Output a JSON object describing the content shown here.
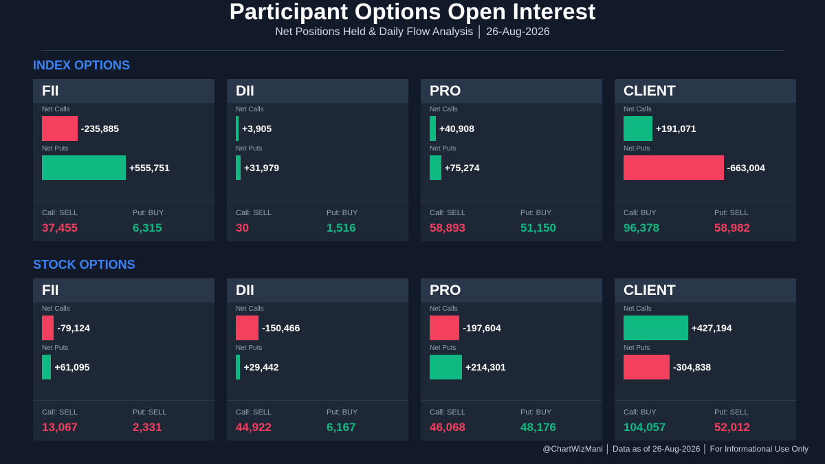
{
  "header": {
    "title": "Participant Options Open Interest",
    "subtitle": "Net Positions Held & Daily Flow Analysis  │  26-Aug-2026"
  },
  "colors": {
    "positive": "#10b981",
    "negative": "#f43f5e",
    "accent": "#3b82f6"
  },
  "sections": [
    {
      "title": "INDEX OPTIONS"
    },
    {
      "title": "STOCK OPTIONS"
    }
  ],
  "footer": "@ChartWizMani │ Data as of 26-Aug-2026 │ For Informational Use Only",
  "chart_data": {
    "type": "bar",
    "groups": [
      {
        "section": "INDEX OPTIONS",
        "panels": [
          {
            "name": "FII",
            "calls_label": "Net Calls",
            "puts_label": "Net Puts",
            "net_calls": -235885,
            "net_calls_text": "-235,885",
            "net_puts": 555751,
            "net_puts_text": "+555,751",
            "call_label": "Call: SELL",
            "call_value": "37,455",
            "call_color": "#f43f5e",
            "put_label": "Put: BUY",
            "put_value": "6,315",
            "put_color": "#10b981"
          },
          {
            "name": "DII",
            "calls_label": "Net Calls",
            "puts_label": "Net Puts",
            "net_calls": 3905,
            "net_calls_text": "+3,905",
            "net_puts": 31979,
            "net_puts_text": "+31,979",
            "call_label": "Call: SELL",
            "call_value": "30",
            "call_color": "#f43f5e",
            "put_label": "Put: BUY",
            "put_value": "1,516",
            "put_color": "#10b981"
          },
          {
            "name": "PRO",
            "calls_label": "Net Calls",
            "puts_label": "Net Puts",
            "net_calls": 40908,
            "net_calls_text": "+40,908",
            "net_puts": 75274,
            "net_puts_text": "+75,274",
            "call_label": "Call: SELL",
            "call_value": "58,893",
            "call_color": "#f43f5e",
            "put_label": "Put: BUY",
            "put_value": "51,150",
            "put_color": "#10b981"
          },
          {
            "name": "CLIENT",
            "calls_label": "Net Calls",
            "puts_label": "Net Puts",
            "net_calls": 191071,
            "net_calls_text": "+191,071",
            "net_puts": -663004,
            "net_puts_text": "-663,004",
            "call_label": "Call: BUY",
            "call_value": "96,378",
            "call_color": "#10b981",
            "put_label": "Put: SELL",
            "put_value": "58,982",
            "put_color": "#f43f5e"
          }
        ]
      },
      {
        "section": "STOCK OPTIONS",
        "panels": [
          {
            "name": "FII",
            "calls_label": "Net Calls",
            "puts_label": "Net Puts",
            "net_calls": -79124,
            "net_calls_text": "-79,124",
            "net_puts": 61095,
            "net_puts_text": "+61,095",
            "call_label": "Call: SELL",
            "call_value": "13,067",
            "call_color": "#f43f5e",
            "put_label": "Put: SELL",
            "put_value": "2,331",
            "put_color": "#f43f5e"
          },
          {
            "name": "DII",
            "calls_label": "Net Calls",
            "puts_label": "Net Puts",
            "net_calls": -150466,
            "net_calls_text": "-150,466",
            "net_puts": 29442,
            "net_puts_text": "+29,442",
            "call_label": "Call: SELL",
            "call_value": "44,922",
            "call_color": "#f43f5e",
            "put_label": "Put: BUY",
            "put_value": "6,167",
            "put_color": "#10b981"
          },
          {
            "name": "PRO",
            "calls_label": "Net Calls",
            "puts_label": "Net Puts",
            "net_calls": -197604,
            "net_calls_text": "-197,604",
            "net_puts": 214301,
            "net_puts_text": "+214,301",
            "call_label": "Call: SELL",
            "call_value": "46,068",
            "call_color": "#f43f5e",
            "put_label": "Put: BUY",
            "put_value": "48,176",
            "put_color": "#10b981"
          },
          {
            "name": "CLIENT",
            "calls_label": "Net Calls",
            "puts_label": "Net Puts",
            "net_calls": 427194,
            "net_calls_text": "+427,194",
            "net_puts": -304838,
            "net_puts_text": "-304,838",
            "call_label": "Call: BUY",
            "call_value": "104,057",
            "call_color": "#10b981",
            "put_label": "Put: SELL",
            "put_value": "52,012",
            "put_color": "#f43f5e"
          }
        ]
      }
    ]
  }
}
